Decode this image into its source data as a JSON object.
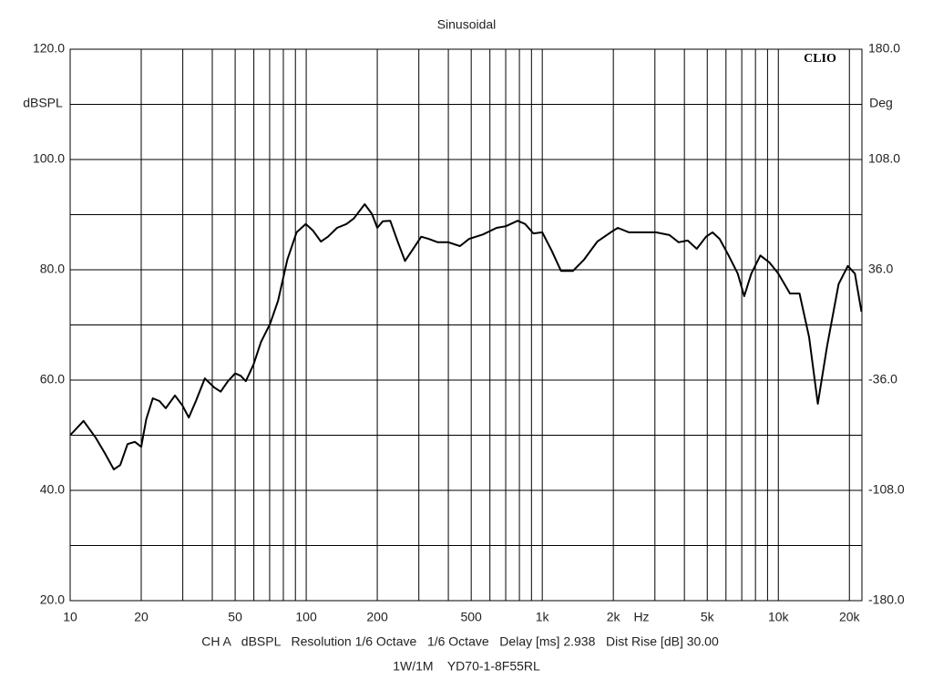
{
  "chart_data": {
    "type": "line",
    "title": "Sinusoidal",
    "watermark": "CLIO",
    "x_unit": "Hz",
    "y_unit": "dBSPL",
    "y2_unit": "Deg",
    "x_log": true,
    "grid": true,
    "x": [
      10,
      11.4,
      12.8,
      14,
      15.3,
      16.3,
      17.5,
      18.8,
      20,
      21,
      22.4,
      23.9,
      25.4,
      27.8,
      29.9,
      31.8,
      34.1,
      37.2,
      40.7,
      43.4,
      46.6,
      50,
      52.7,
      55.5,
      59.8,
      64.3,
      70.3,
      76,
      83.1,
      91,
      99.6,
      106.8,
      115.4,
      123.7,
      135,
      148,
      159,
      177,
      190,
      200,
      211,
      227,
      244,
      262,
      281,
      307,
      330,
      361,
      400,
      448,
      490,
      560,
      640,
      701,
      787,
      846,
      917,
      1000,
      1095,
      1200,
      1350,
      1500,
      1710,
      1950,
      2090,
      2330,
      2660,
      3030,
      3460,
      3780,
      4130,
      4510,
      4940,
      5260,
      5640,
      6160,
      6730,
      7170,
      7680,
      8390,
      9180,
      10000,
      11200,
      12300,
      13500,
      14700,
      16100,
      18000,
      19700,
      21100,
      22500
    ],
    "series": [
      {
        "name": "dBSPL",
        "color": "#000000",
        "values": [
          50.0,
          52.6,
          49.6,
          46.8,
          43.8,
          44.6,
          48.4,
          48.8,
          47.9,
          52.9,
          56.7,
          56.2,
          54.9,
          57.2,
          55.4,
          53.2,
          56.2,
          60.3,
          58.7,
          57.9,
          59.8,
          61.2,
          60.8,
          59.8,
          62.8,
          66.9,
          70.2,
          74.4,
          81.8,
          86.8,
          88.3,
          87.1,
          85.1,
          86.0,
          87.6,
          88.3,
          89.3,
          91.9,
          90.1,
          87.6,
          88.8,
          88.9,
          85.1,
          81.6,
          83.5,
          86.0,
          85.6,
          85.0,
          85.0,
          84.3,
          85.6,
          86.4,
          87.6,
          87.9,
          88.9,
          88.3,
          86.6,
          86.8,
          83.5,
          79.8,
          79.8,
          81.8,
          85.1,
          86.8,
          87.6,
          86.8,
          86.8,
          86.8,
          86.3,
          85.0,
          85.3,
          83.8,
          86.0,
          86.8,
          85.6,
          82.6,
          79.3,
          75.2,
          79.3,
          82.6,
          81.3,
          79.3,
          75.7,
          75.7,
          67.8,
          55.7,
          66.2,
          77.4,
          80.7,
          79.3,
          72.4
        ]
      }
    ],
    "xlim": [
      10,
      22600
    ],
    "xticks": [
      10,
      20,
      50,
      100,
      200,
      500,
      {
        "value": 1000,
        "label": "1k"
      },
      {
        "value": 2000,
        "label": "2k"
      },
      {
        "value": 5000,
        "label": "5k"
      },
      {
        "value": 10000,
        "label": "10k"
      },
      {
        "value": 20000,
        "label": "20k"
      }
    ],
    "minor_xticks": [
      30,
      40,
      60,
      70,
      80,
      90,
      300,
      400,
      600,
      700,
      800,
      900,
      3000,
      4000,
      6000,
      7000,
      8000,
      9000
    ],
    "ylim": [
      20,
      120
    ],
    "yticks": [
      {
        "value": 20,
        "label": "20.0"
      },
      {
        "value": 40,
        "label": "40.0"
      },
      {
        "value": 60,
        "label": "60.0"
      },
      {
        "value": 80,
        "label": "80.0"
      },
      {
        "value": 100,
        "label": "100.0"
      },
      {
        "value": 120,
        "label": "120.0"
      }
    ],
    "minor_yticks": [
      30,
      50,
      70,
      90,
      110
    ],
    "y2lim": [
      -180,
      180
    ],
    "y2ticks": [
      {
        "value": -180,
        "label": "-180.0"
      },
      {
        "value": -108,
        "label": "-108.0"
      },
      {
        "value": -36,
        "label": "-36.0"
      },
      {
        "value": 36,
        "label": "36.0"
      },
      {
        "value": 108,
        "label": "108.0"
      },
      {
        "value": 180,
        "label": "180.0"
      }
    ],
    "footer": [
      "CH A   dBSPL   Resolution 1/6 Octave   1/6 Octave   Delay [ms] 2.938   Dist Rise [dB] 30.00",
      "1W/1M    YD70-1-8F55RL"
    ]
  }
}
